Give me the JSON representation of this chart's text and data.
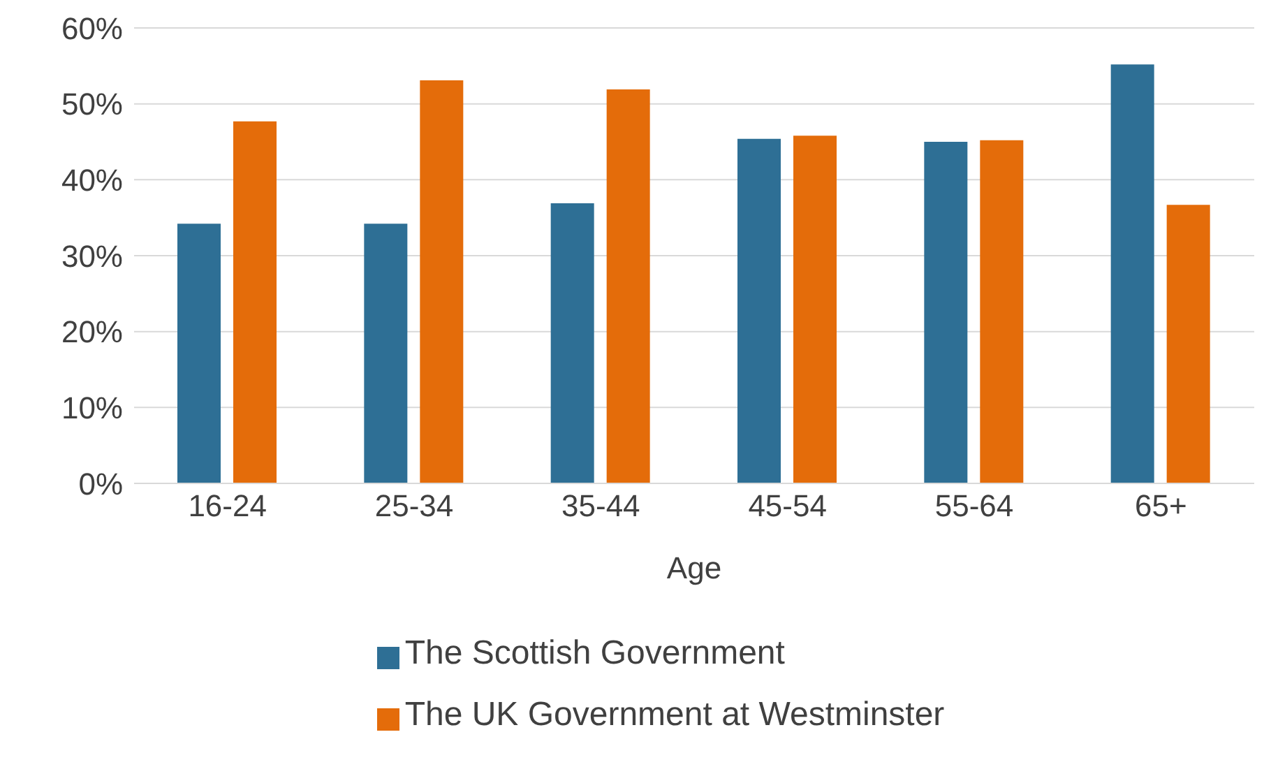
{
  "chart_data": {
    "type": "bar",
    "xlabel": "Age",
    "categories": [
      "16-24",
      "25-34",
      "35-44",
      "45-54",
      "55-64",
      "65+"
    ],
    "series": [
      {
        "name": "The Scottish Government",
        "color": "#2e6f95",
        "values": [
          34.2,
          34.2,
          36.9,
          45.4,
          45.0,
          55.2
        ]
      },
      {
        "name": "The UK Government at Westminster",
        "color": "#e46c0a",
        "values": [
          47.7,
          53.1,
          51.9,
          45.8,
          45.2,
          36.7
        ]
      }
    ],
    "ylim": [
      0,
      60
    ],
    "yticks": [
      {
        "value": 0,
        "label": "0%"
      },
      {
        "value": 10,
        "label": "10%"
      },
      {
        "value": 20,
        "label": "20%"
      },
      {
        "value": 30,
        "label": "30%"
      },
      {
        "value": 40,
        "label": "40%"
      },
      {
        "value": 50,
        "label": "50%"
      },
      {
        "value": 60,
        "label": "60%"
      }
    ],
    "grid": "y",
    "legend": "bottom"
  }
}
